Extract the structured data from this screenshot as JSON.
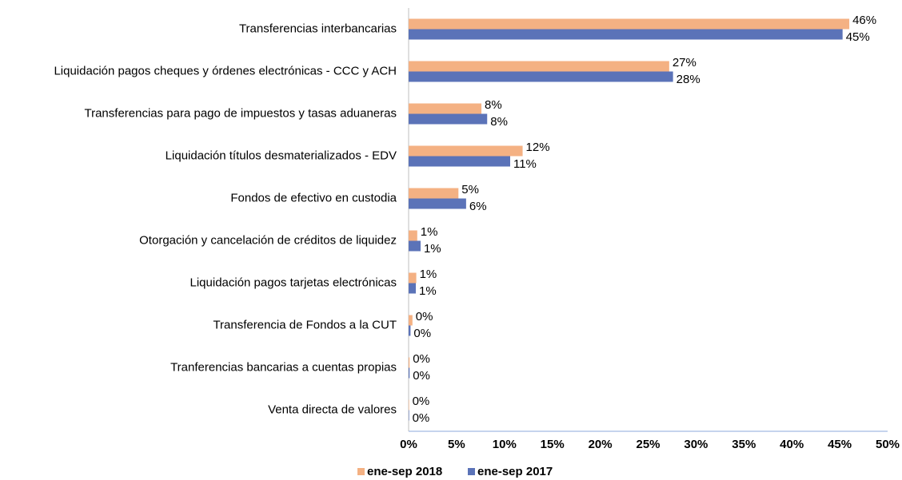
{
  "chart_data": {
    "type": "bar",
    "orientation": "horizontal",
    "categories": [
      "Transferencias interbancarias",
      "Liquidación pagos cheques y órdenes electrónicas - CCC y ACH",
      "Transferencias para pago de impuestos y tasas aduaneras",
      "Liquidación títulos desmaterializados - EDV",
      "Fondos de efectivo en custodia",
      "Otorgación y cancelación de créditos de liquidez",
      "Liquidación pagos tarjetas electrónicas",
      "Transferencia de Fondos a la CUT",
      "Tranferencias bancarias a cuentas propias",
      "Venta directa de valores"
    ],
    "series": [
      {
        "name": "ene-sep 2018",
        "color": "#f4b183",
        "label_color": "#9c5a26",
        "values": [
          46,
          27.2,
          7.6,
          11.9,
          5.2,
          0.9,
          0.8,
          0.4,
          0.1,
          0.05
        ],
        "value_labels": [
          "46%",
          "27%",
          "8%",
          "12%",
          "5%",
          "1%",
          "1%",
          "0%",
          "0%",
          "0%"
        ]
      },
      {
        "name": "ene-sep 2017",
        "color": "#5b73b8",
        "label_color": "#000000",
        "values": [
          45.3,
          27.6,
          8.2,
          10.6,
          6.0,
          1.25,
          0.75,
          0.2,
          0.1,
          0.05
        ],
        "value_labels": [
          "45%",
          "28%",
          "8%",
          "11%",
          "6%",
          "1%",
          "1%",
          "0%",
          "0%",
          "0%"
        ]
      }
    ],
    "xlim": [
      0,
      50
    ],
    "xticks": [
      {
        "value": 0,
        "label": "0%"
      },
      {
        "value": 5,
        "label": "5%"
      },
      {
        "value": 10,
        "label": "10%"
      },
      {
        "value": 15,
        "label": "15%"
      },
      {
        "value": 20,
        "label": "20%"
      },
      {
        "value": 25,
        "label": "25%"
      },
      {
        "value": 30,
        "label": "30%"
      },
      {
        "value": 35,
        "label": "35%"
      },
      {
        "value": 40,
        "label": "40%"
      },
      {
        "value": 45,
        "label": "45%"
      },
      {
        "value": 50,
        "label": "50%"
      }
    ],
    "legend": "bottom",
    "grid": false
  }
}
